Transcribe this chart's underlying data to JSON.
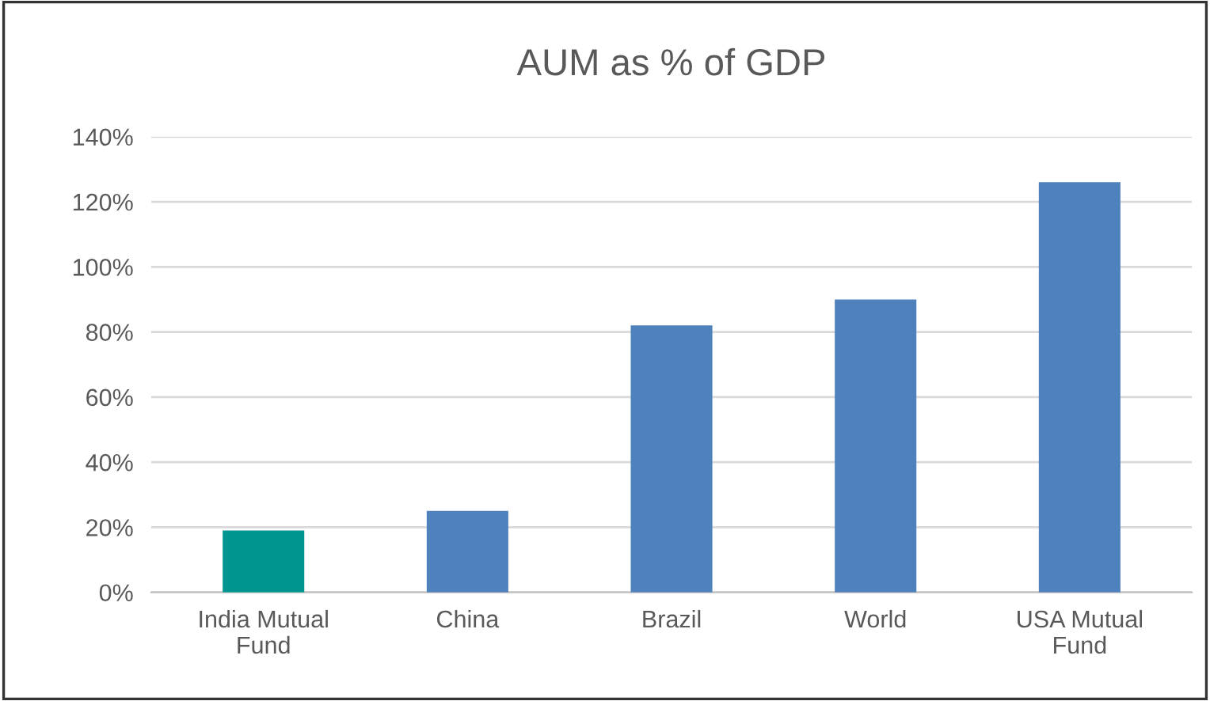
{
  "chart_data": {
    "type": "bar",
    "title": "AUM as % of GDP",
    "categories": [
      "India Mutual Fund",
      "China",
      "Brazil",
      "World",
      "USA Mutual Fund"
    ],
    "values": [
      19,
      25,
      82,
      90,
      126
    ],
    "colors": [
      "#00968f",
      "#4f81bd",
      "#4f81bd",
      "#4f81bd",
      "#4f81bd"
    ],
    "ylim": [
      0,
      140
    ],
    "yticks": [
      {
        "value": 0,
        "label": "0%"
      },
      {
        "value": 20,
        "label": "20%"
      },
      {
        "value": 40,
        "label": "40%"
      },
      {
        "value": 60,
        "label": "60%"
      },
      {
        "value": 80,
        "label": "80%"
      },
      {
        "value": 100,
        "label": "100%"
      },
      {
        "value": 120,
        "label": "120%"
      },
      {
        "value": 140,
        "label": "140%"
      }
    ],
    "grid": "y",
    "legend": false
  }
}
